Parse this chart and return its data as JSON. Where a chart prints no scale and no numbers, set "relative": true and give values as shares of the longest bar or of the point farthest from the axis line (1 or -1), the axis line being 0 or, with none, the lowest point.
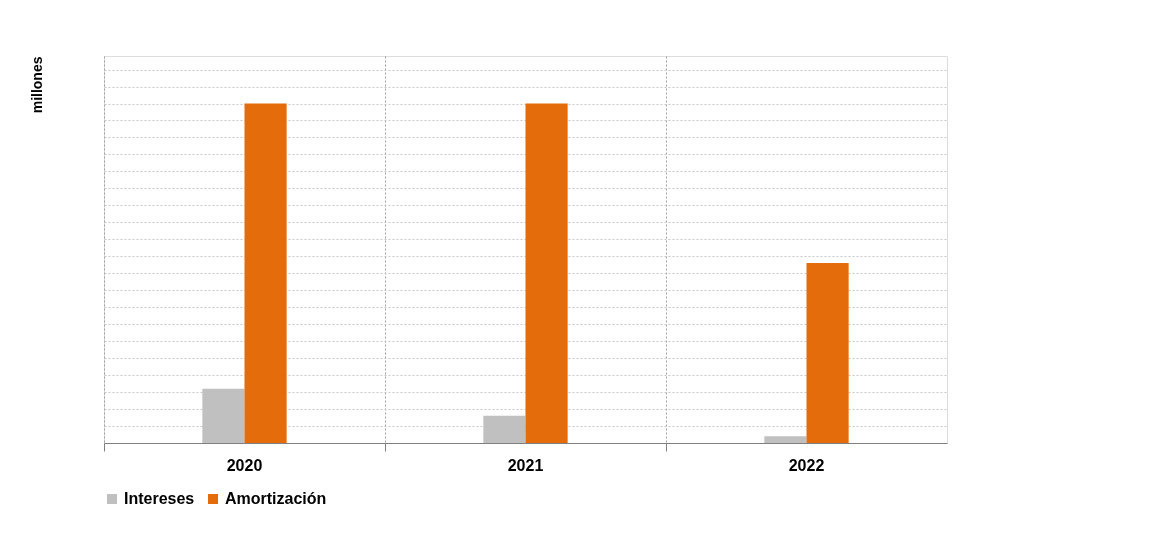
{
  "chart_data": {
    "type": "bar",
    "relative": true,
    "ylabel": "millones",
    "categories": [
      "2020",
      "2021",
      "2022"
    ],
    "series": [
      {
        "name": "Intereses",
        "color": "#c0c0c0",
        "values": [
          0.16,
          0.08,
          0.02
        ]
      },
      {
        "name": "Amortización",
        "color": "#e46c0a",
        "values": [
          1,
          1,
          0.53
        ]
      }
    ],
    "grid": true,
    "legend": "bottom"
  }
}
